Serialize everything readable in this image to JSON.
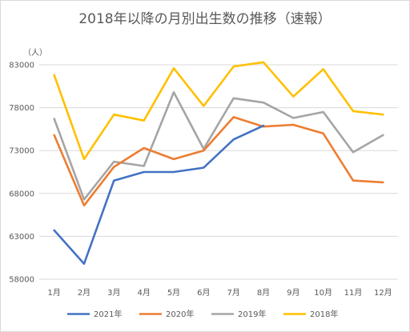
{
  "chart_data": {
    "type": "line",
    "title": "2018年以降の月別出生数の推移（速報）",
    "y_unit": "（人）",
    "xlabel": "",
    "ylabel": "",
    "categories": [
      "1月",
      "2月",
      "3月",
      "4月",
      "5月",
      "6月",
      "7月",
      "8月",
      "9月",
      "10月",
      "11月",
      "12月"
    ],
    "ylim": [
      58000,
      83000
    ],
    "yticks": [
      "58000",
      "63000",
      "68000",
      "73000",
      "78000",
      "83000"
    ],
    "grid": true,
    "legend_position": "bottom",
    "series": [
      {
        "name": "2021年",
        "color": "#4472c4",
        "values": [
          63700,
          59800,
          69500,
          70500,
          70500,
          71000,
          74300,
          75900,
          null,
          null,
          null,
          null
        ]
      },
      {
        "name": "2020年",
        "color": "#ed7d31",
        "values": [
          74800,
          66600,
          71100,
          73300,
          72000,
          73000,
          76900,
          75800,
          76000,
          75000,
          69500,
          69300
        ]
      },
      {
        "name": "2019年",
        "color": "#a5a5a5",
        "values": [
          76700,
          67300,
          71700,
          71200,
          79800,
          73200,
          79100,
          78600,
          76800,
          77500,
          72800,
          74800
        ]
      },
      {
        "name": "2018年",
        "color": "#ffc000",
        "values": [
          81800,
          72000,
          77200,
          76500,
          82600,
          78200,
          82800,
          83300,
          79300,
          82500,
          77600,
          77200
        ]
      }
    ]
  }
}
